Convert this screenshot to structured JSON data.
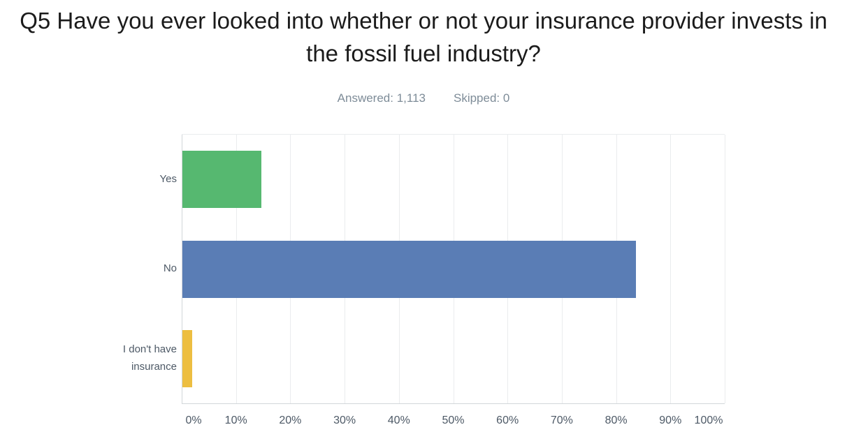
{
  "page": {
    "title": "Q5 Have you ever looked into whether or not your insurance provider invests in the fossil fuel industry?",
    "answered": "Answered: 1,113",
    "skipped": "Skipped: 0"
  },
  "chart_data": {
    "type": "bar",
    "orientation": "horizontal",
    "title": "Q5 Have you ever looked into whether or not your insurance provider invests in the fossil fuel industry?",
    "answered": 1113,
    "skipped": 0,
    "categories": [
      "Yes",
      "No",
      "I don't have insurance"
    ],
    "values": [
      14.5,
      83.6,
      1.8
    ],
    "unit": "%",
    "xlim": [
      0,
      100
    ],
    "x_tick_labels": [
      "0%",
      "10%",
      "20%",
      "30%",
      "40%",
      "50%",
      "60%",
      "70%",
      "80%",
      "90%",
      "100%"
    ],
    "grid": true,
    "legend": false,
    "bar_colors": [
      "#56b870",
      "#5a7db5",
      "#edbe41"
    ],
    "gridline_color": "#eaecee",
    "axis_line_color": "#d2d6d9",
    "label_color": "#4d5966",
    "stats_color": "#7e8c98"
  }
}
